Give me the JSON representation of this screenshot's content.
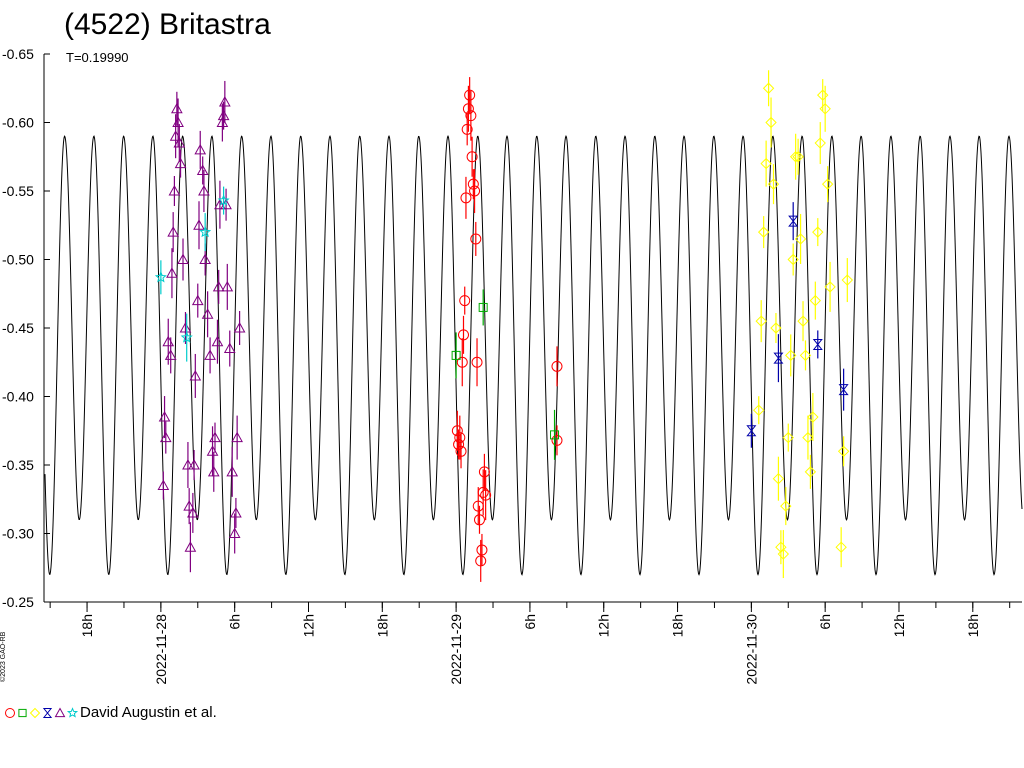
{
  "title": "(4522) Britastra",
  "period_label": "T=0.19990",
  "copyright": "©2023 GAO-RB",
  "legend": {
    "text": "David Augustin et al.",
    "symbols": [
      {
        "shape": "circle",
        "color": "#ff0000"
      },
      {
        "shape": "square",
        "color": "#00aa00"
      },
      {
        "shape": "diamond",
        "color": "#ffff00"
      },
      {
        "shape": "hourglass",
        "color": "#0000aa"
      },
      {
        "shape": "triangle",
        "color": "#800080"
      },
      {
        "shape": "star",
        "color": "#00cccc"
      }
    ]
  },
  "chart_data": {
    "type": "scatter",
    "title": "(4522) Britastra",
    "ylabel": "",
    "xlabel": "",
    "y_inverted": true,
    "ylim": [
      -0.25,
      -0.65
    ],
    "yticks": [
      -0.25,
      -0.3,
      -0.35,
      -0.4,
      -0.45,
      -0.5,
      -0.55,
      -0.6,
      -0.65
    ],
    "ytick_labels": [
      "-0.25",
      "-0.30",
      "-0.35",
      "-0.40",
      "-0.45",
      "-0.50",
      "-0.55",
      "-0.60",
      "-0.65"
    ],
    "xlim_hours": [
      -33.5,
      46.0
    ],
    "xticks": [
      {
        "hours": -30,
        "label": "18h"
      },
      {
        "hours": -24,
        "label": "2022-11-28"
      },
      {
        "hours": -18,
        "label": "6h"
      },
      {
        "hours": -12,
        "label": "12h"
      },
      {
        "hours": -6,
        "label": "18h"
      },
      {
        "hours": 0,
        "label": "2022-11-29"
      },
      {
        "hours": 6,
        "label": "6h"
      },
      {
        "hours": 12,
        "label": "12h"
      },
      {
        "hours": 18,
        "label": "18h"
      },
      {
        "hours": 24,
        "label": "2022-11-30"
      },
      {
        "hours": 30,
        "label": "6h"
      },
      {
        "hours": 36,
        "label": "12h"
      },
      {
        "hours": 42,
        "label": "18h"
      }
    ],
    "model_curve": {
      "period_days": 0.1999,
      "mean": -0.45,
      "amp_primary_max": -0.61,
      "amp_secondary_max": -0.57,
      "min": -0.29
    },
    "series": [
      {
        "name": "",
        "marker": "triangle",
        "color": "#800080",
        "points": [
          {
            "h": -23.8,
            "y": -0.335
          },
          {
            "h": -23.7,
            "y": -0.385
          },
          {
            "h": -23.6,
            "y": -0.37
          },
          {
            "h": -23.4,
            "y": -0.44
          },
          {
            "h": -23.2,
            "y": -0.43
          },
          {
            "h": -23.1,
            "y": -0.49
          },
          {
            "h": -23.0,
            "y": -0.52
          },
          {
            "h": -22.9,
            "y": -0.55
          },
          {
            "h": -22.8,
            "y": -0.59
          },
          {
            "h": -22.7,
            "y": -0.61
          },
          {
            "h": -22.6,
            "y": -0.6
          },
          {
            "h": -22.5,
            "y": -0.585
          },
          {
            "h": -22.4,
            "y": -0.57
          },
          {
            "h": -22.2,
            "y": -0.5
          },
          {
            "h": -22.0,
            "y": -0.45
          },
          {
            "h": -21.8,
            "y": -0.35
          },
          {
            "h": -21.7,
            "y": -0.32
          },
          {
            "h": -21.6,
            "y": -0.29
          },
          {
            "h": -21.4,
            "y": -0.315
          },
          {
            "h": -21.3,
            "y": -0.35
          },
          {
            "h": -21.2,
            "y": -0.415
          },
          {
            "h": -21.0,
            "y": -0.47
          },
          {
            "h": -20.9,
            "y": -0.525
          },
          {
            "h": -20.8,
            "y": -0.58
          },
          {
            "h": -20.6,
            "y": -0.565
          },
          {
            "h": -20.5,
            "y": -0.55
          },
          {
            "h": -20.4,
            "y": -0.5
          },
          {
            "h": -20.2,
            "y": -0.46
          },
          {
            "h": -20.0,
            "y": -0.43
          },
          {
            "h": -19.8,
            "y": -0.36
          },
          {
            "h": -19.7,
            "y": -0.345
          },
          {
            "h": -19.6,
            "y": -0.37
          },
          {
            "h": -19.4,
            "y": -0.44
          },
          {
            "h": -19.3,
            "y": -0.48
          },
          {
            "h": -19.2,
            "y": -0.54
          },
          {
            "h": -19.0,
            "y": -0.6
          },
          {
            "h": -18.9,
            "y": -0.605
          },
          {
            "h": -18.8,
            "y": -0.615
          },
          {
            "h": -18.7,
            "y": -0.54
          },
          {
            "h": -18.6,
            "y": -0.48
          },
          {
            "h": -18.4,
            "y": -0.435
          },
          {
            "h": -18.2,
            "y": -0.345
          },
          {
            "h": -18.0,
            "y": -0.3
          },
          {
            "h": -17.9,
            "y": -0.315
          },
          {
            "h": -17.8,
            "y": -0.37
          },
          {
            "h": -17.6,
            "y": -0.45
          }
        ]
      },
      {
        "name": "",
        "marker": "star",
        "color": "#00cccc",
        "points": [
          {
            "h": -24.0,
            "y": -0.487
          },
          {
            "h": -21.9,
            "y": -0.443
          },
          {
            "h": -20.4,
            "y": -0.52
          },
          {
            "h": -18.9,
            "y": -0.543
          }
        ]
      },
      {
        "name": "",
        "marker": "circle",
        "color": "#ff0000",
        "points": [
          {
            "h": 0.1,
            "y": -0.375
          },
          {
            "h": 0.2,
            "y": -0.365
          },
          {
            "h": 0.3,
            "y": -0.37
          },
          {
            "h": 0.4,
            "y": -0.36
          },
          {
            "h": 0.5,
            "y": -0.425
          },
          {
            "h": 0.6,
            "y": -0.445
          },
          {
            "h": 0.7,
            "y": -0.47
          },
          {
            "h": 0.8,
            "y": -0.545
          },
          {
            "h": 0.9,
            "y": -0.595
          },
          {
            "h": 1.0,
            "y": -0.61
          },
          {
            "h": 1.1,
            "y": -0.62
          },
          {
            "h": 1.2,
            "y": -0.605
          },
          {
            "h": 1.3,
            "y": -0.575
          },
          {
            "h": 1.4,
            "y": -0.555
          },
          {
            "h": 1.5,
            "y": -0.55
          },
          {
            "h": 1.6,
            "y": -0.515
          },
          {
            "h": 1.7,
            "y": -0.425
          },
          {
            "h": 1.8,
            "y": -0.32
          },
          {
            "h": 1.9,
            "y": -0.31
          },
          {
            "h": 2.0,
            "y": -0.28
          },
          {
            "h": 2.1,
            "y": -0.288
          },
          {
            "h": 2.2,
            "y": -0.33
          },
          {
            "h": 2.3,
            "y": -0.345
          },
          {
            "h": 2.4,
            "y": -0.328
          },
          {
            "h": 8.2,
            "y": -0.422
          },
          {
            "h": 8.2,
            "y": -0.368
          }
        ]
      },
      {
        "name": "",
        "marker": "square",
        "color": "#00aa00",
        "points": [
          {
            "h": 0.0,
            "y": -0.43
          },
          {
            "h": 2.2,
            "y": -0.465
          },
          {
            "h": 8.0,
            "y": -0.372
          }
        ]
      },
      {
        "name": "",
        "marker": "diamond",
        "color": "#ffff00",
        "points": [
          {
            "h": 24.6,
            "y": -0.39
          },
          {
            "h": 24.8,
            "y": -0.455
          },
          {
            "h": 25.0,
            "y": -0.52
          },
          {
            "h": 25.2,
            "y": -0.57
          },
          {
            "h": 25.4,
            "y": -0.625
          },
          {
            "h": 25.6,
            "y": -0.6
          },
          {
            "h": 25.8,
            "y": -0.555
          },
          {
            "h": 26.0,
            "y": -0.45
          },
          {
            "h": 26.2,
            "y": -0.34
          },
          {
            "h": 26.4,
            "y": -0.29
          },
          {
            "h": 26.6,
            "y": -0.285
          },
          {
            "h": 26.8,
            "y": -0.32
          },
          {
            "h": 27.0,
            "y": -0.37
          },
          {
            "h": 27.2,
            "y": -0.43
          },
          {
            "h": 27.4,
            "y": -0.5
          },
          {
            "h": 27.6,
            "y": -0.575
          },
          {
            "h": 27.8,
            "y": -0.575
          },
          {
            "h": 28.0,
            "y": -0.515
          },
          {
            "h": 28.2,
            "y": -0.455
          },
          {
            "h": 28.4,
            "y": -0.43
          },
          {
            "h": 28.6,
            "y": -0.37
          },
          {
            "h": 28.8,
            "y": -0.345
          },
          {
            "h": 29.0,
            "y": -0.385
          },
          {
            "h": 29.2,
            "y": -0.47
          },
          {
            "h": 29.4,
            "y": -0.52
          },
          {
            "h": 29.6,
            "y": -0.585
          },
          {
            "h": 29.8,
            "y": -0.62
          },
          {
            "h": 30.0,
            "y": -0.61
          },
          {
            "h": 30.2,
            "y": -0.555
          },
          {
            "h": 30.4,
            "y": -0.48
          },
          {
            "h": 31.3,
            "y": -0.29
          },
          {
            "h": 31.5,
            "y": -0.36
          },
          {
            "h": 31.8,
            "y": -0.485
          }
        ]
      },
      {
        "name": "",
        "marker": "hourglass",
        "color": "#0000aa",
        "points": [
          {
            "h": 24.0,
            "y": -0.375
          },
          {
            "h": 26.2,
            "y": -0.428
          },
          {
            "h": 27.4,
            "y": -0.528
          },
          {
            "h": 29.4,
            "y": -0.438
          },
          {
            "h": 31.5,
            "y": -0.405
          }
        ]
      }
    ]
  }
}
